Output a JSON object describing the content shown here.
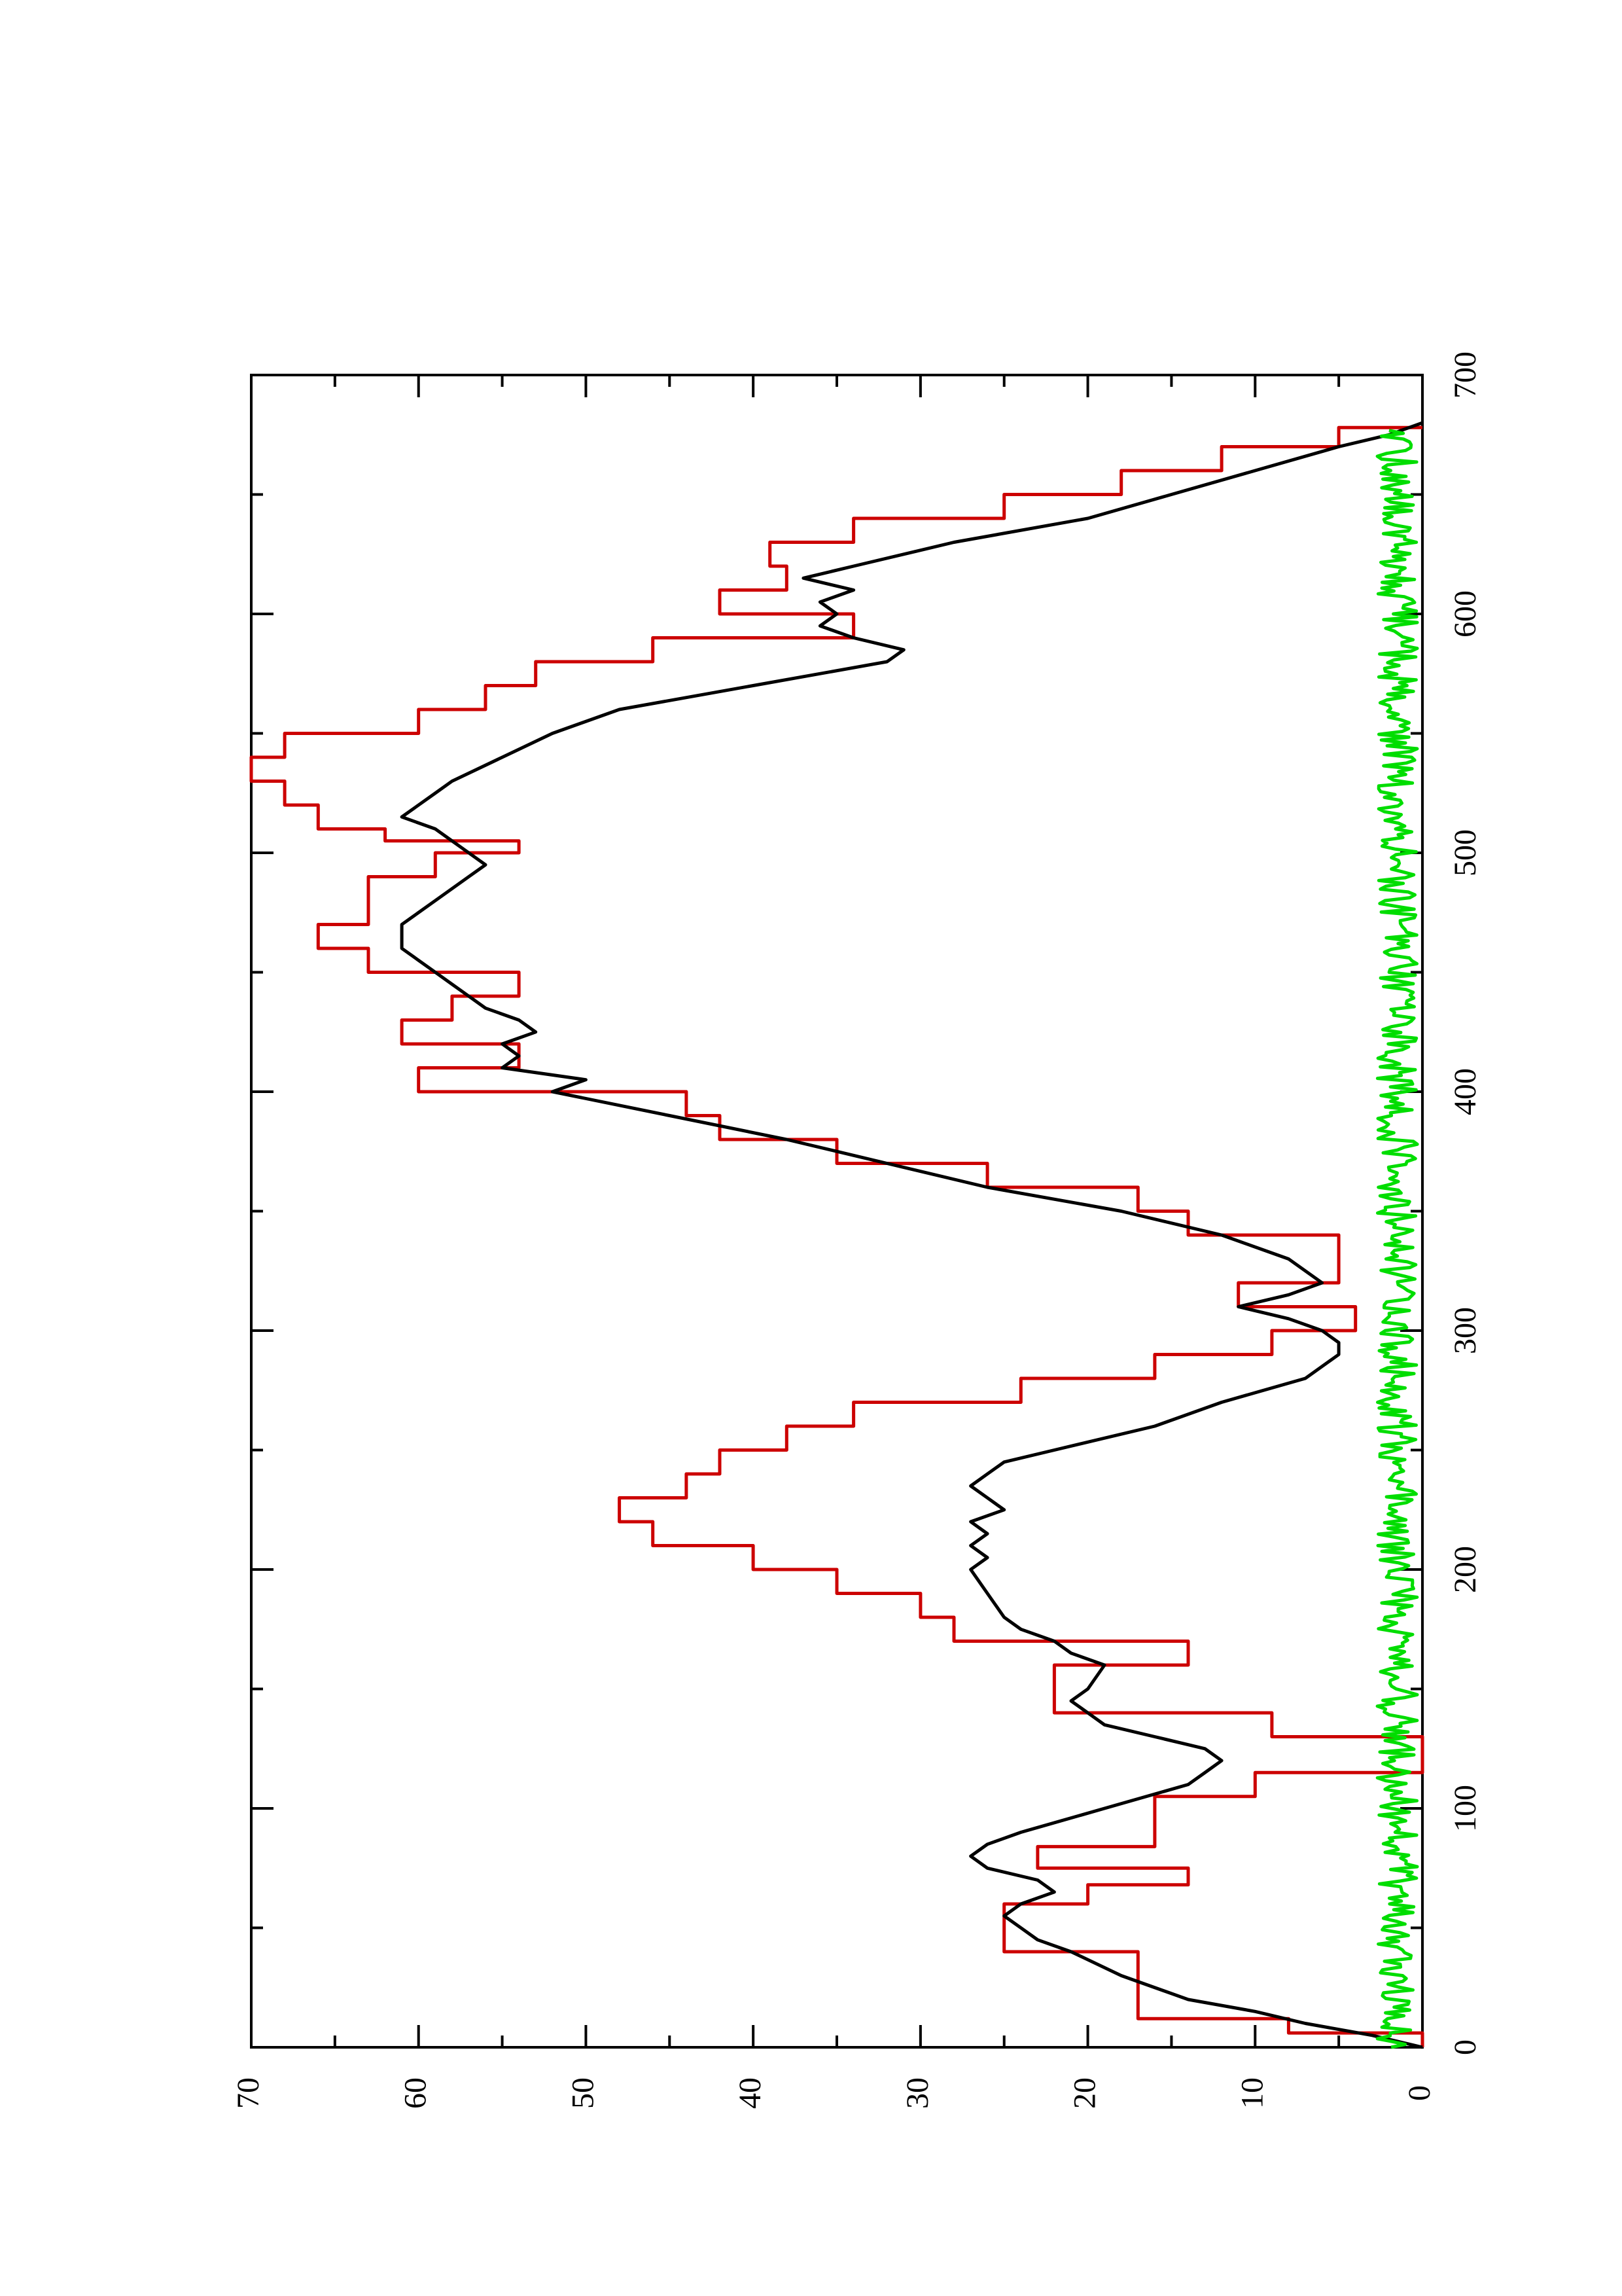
{
  "chart_data": {
    "type": "line",
    "orientation": "rotated 90° counter-clockwise (page printed landscape)",
    "title": "",
    "xlabel": "",
    "ylabel": "",
    "xlim": [
      0,
      700
    ],
    "ylim": [
      0,
      70
    ],
    "x_ticks": [
      0,
      100,
      200,
      300,
      400,
      500,
      600,
      700
    ],
    "x_tick_labels": [
      "0",
      "100",
      "200",
      "300",
      "400",
      "500",
      "600",
      "700"
    ],
    "y_ticks": [
      0,
      10,
      20,
      30,
      40,
      50,
      60,
      70
    ],
    "y_tick_labels": [
      "0",
      "10",
      "20",
      "30",
      "40",
      "50",
      "60",
      "70"
    ],
    "grid": false,
    "legend": "none",
    "series": [
      {
        "color": "#cc0000",
        "style": "step",
        "x": [
          0,
          6,
          12,
          18,
          40,
          55,
          60,
          68,
          75,
          84,
          95,
          105,
          115,
          120,
          130,
          140,
          160,
          170,
          180,
          190,
          200,
          210,
          220,
          230,
          240,
          250,
          260,
          270,
          280,
          290,
          300,
          310,
          320,
          330,
          340,
          350,
          360,
          370,
          380,
          390,
          400,
          410,
          420,
          430,
          440,
          450,
          460,
          470,
          480,
          490,
          500,
          505,
          510,
          520,
          530,
          540,
          550,
          560,
          570,
          580,
          590,
          600,
          610,
          620,
          630,
          640,
          650,
          660,
          670,
          678
        ],
        "y": [
          0,
          8,
          17,
          17,
          25,
          25,
          20,
          14,
          23,
          16,
          16,
          10,
          0,
          0,
          9,
          22,
          14,
          28,
          30,
          35,
          40,
          46,
          48,
          44,
          42,
          38,
          34,
          24,
          16,
          9,
          4,
          11,
          5,
          5,
          14,
          17,
          26,
          35,
          42,
          44,
          60,
          54,
          61,
          58,
          54,
          63,
          66,
          63,
          63,
          59,
          54,
          62,
          66,
          68,
          70,
          68,
          60,
          56,
          53,
          46,
          34,
          42,
          38,
          39,
          34,
          25,
          18,
          12,
          5,
          0
        ]
      },
      {
        "color": "#000000",
        "style": "line",
        "x": [
          0,
          5,
          10,
          15,
          20,
          30,
          40,
          45,
          50,
          55,
          60,
          65,
          70,
          75,
          80,
          85,
          90,
          100,
          110,
          115,
          120,
          125,
          130,
          135,
          140,
          145,
          150,
          160,
          165,
          170,
          175,
          180,
          190,
          200,
          205,
          210,
          215,
          220,
          225,
          230,
          235,
          240,
          245,
          250,
          260,
          270,
          280,
          290,
          295,
          300,
          305,
          310,
          315,
          320,
          330,
          340,
          350,
          360,
          370,
          380,
          390,
          400,
          405,
          410,
          415,
          420,
          425,
          430,
          435,
          440,
          445,
          450,
          460,
          470,
          480,
          490,
          495,
          500,
          505,
          510,
          515,
          520,
          525,
          530,
          540,
          550,
          560,
          570,
          580,
          585,
          590,
          595,
          600,
          605,
          610,
          615,
          620,
          630,
          640,
          650,
          660,
          670,
          675,
          680
        ],
        "y": [
          0,
          3,
          7,
          10,
          14,
          18,
          21,
          23,
          24,
          25,
          24,
          22,
          23,
          26,
          27,
          26,
          24,
          19,
          14,
          13,
          12,
          13,
          16,
          19,
          20,
          21,
          20,
          19,
          21,
          22,
          24,
          25,
          26,
          27,
          26,
          27,
          26,
          27,
          25,
          26,
          27,
          26,
          25,
          22,
          16,
          12,
          7,
          5,
          5,
          6,
          8,
          11,
          8,
          6,
          8,
          12,
          18,
          26,
          32,
          38,
          45,
          52,
          50,
          55,
          54,
          55,
          53,
          54,
          56,
          57,
          58,
          59,
          61,
          61,
          59,
          57,
          56,
          57,
          58,
          59,
          61,
          60,
          59,
          58,
          55,
          52,
          48,
          40,
          32,
          31,
          34,
          36,
          35,
          36,
          34,
          37,
          34,
          28,
          20,
          15,
          10,
          5,
          2,
          0
        ]
      },
      {
        "color": "#00dd00",
        "style": "noise",
        "x_range": [
          0,
          678
        ],
        "y_mean": 1.5,
        "y_amplitude": 1.2
      }
    ]
  }
}
